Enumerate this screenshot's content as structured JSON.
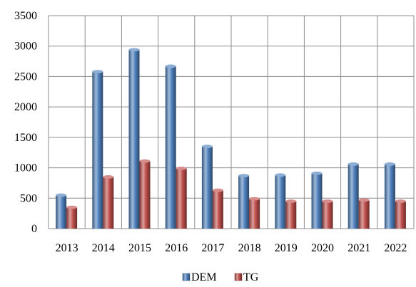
{
  "chart_data": {
    "type": "bar",
    "title": "",
    "xlabel": "",
    "ylabel": "",
    "categories": [
      "2013",
      "2014",
      "2015",
      "2016",
      "2017",
      "2018",
      "2019",
      "2020",
      "2021",
      "2022"
    ],
    "series": [
      {
        "name": "DEM",
        "color": "#4f81bd",
        "values": [
          550,
          2580,
          2940,
          2670,
          1350,
          870,
          880,
          910,
          1060,
          1060
        ]
      },
      {
        "name": "TG",
        "color": "#c0504d",
        "values": [
          350,
          850,
          1110,
          990,
          630,
          490,
          450,
          450,
          470,
          450
        ]
      }
    ],
    "ylim": [
      0,
      3500
    ],
    "yticks": [
      "0",
      "500",
      "1000",
      "1500",
      "2000",
      "2500",
      "3000",
      "3500"
    ],
    "grid": true,
    "legend_position": "bottom",
    "style": "3d-cylinder"
  }
}
